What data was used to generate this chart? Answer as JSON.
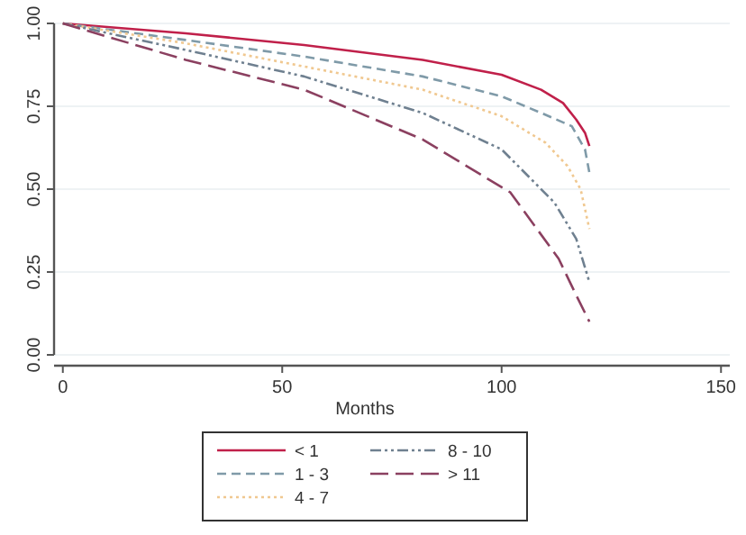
{
  "chart_data": {
    "type": "line",
    "xlabel": "Months",
    "xlim": [
      -2,
      152
    ],
    "xticks": [
      0,
      50,
      100,
      150
    ],
    "ylim": [
      0,
      1
    ],
    "yticks": [
      {
        "value": 0,
        "label": "0.00"
      },
      {
        "value": 0.25,
        "label": "0.25"
      },
      {
        "value": 0.5,
        "label": "0.50"
      },
      {
        "value": 0.75,
        "label": "0.75"
      },
      {
        "value": 1,
        "label": "1.00"
      }
    ],
    "grid": "y",
    "legend": "bottom",
    "marker": "none",
    "series": [
      {
        "name": "< 1",
        "color": "#c0204a",
        "line_style": "solid",
        "x": [
          0,
          28,
          55,
          82,
          100,
          109,
          114,
          117,
          119,
          120
        ],
        "values": [
          1,
          0.97,
          0.935,
          0.89,
          0.845,
          0.8,
          0.76,
          0.71,
          0.67,
          0.63
        ]
      },
      {
        "name": "1 - 3",
        "color": "#7f9aa8",
        "line_style": "dashed",
        "x": [
          0,
          28,
          55,
          82,
          100,
          109,
          116,
          119,
          120
        ],
        "values": [
          1,
          0.95,
          0.9,
          0.84,
          0.78,
          0.73,
          0.69,
          0.62,
          0.55
        ]
      },
      {
        "name": "4 - 7",
        "color": "#f0c890",
        "line_style": "dotted",
        "x": [
          0,
          28,
          55,
          82,
          100,
          110,
          115,
          118,
          120
        ],
        "values": [
          1,
          0.94,
          0.87,
          0.8,
          0.72,
          0.64,
          0.57,
          0.5,
          0.38
        ]
      },
      {
        "name": "8 - 10",
        "color": "#6f8090",
        "line_style": "dashdot",
        "x": [
          0,
          28,
          55,
          82,
          100,
          112,
          117,
          120
        ],
        "values": [
          1,
          0.92,
          0.84,
          0.73,
          0.62,
          0.46,
          0.35,
          0.22
        ]
      },
      {
        "name": "> 11",
        "color": "#8b4060",
        "line_style": "longdash",
        "x": [
          0,
          28,
          55,
          82,
          102,
          113,
          117,
          120
        ],
        "values": [
          1,
          0.89,
          0.8,
          0.65,
          0.49,
          0.29,
          0.18,
          0.1
        ]
      }
    ]
  }
}
